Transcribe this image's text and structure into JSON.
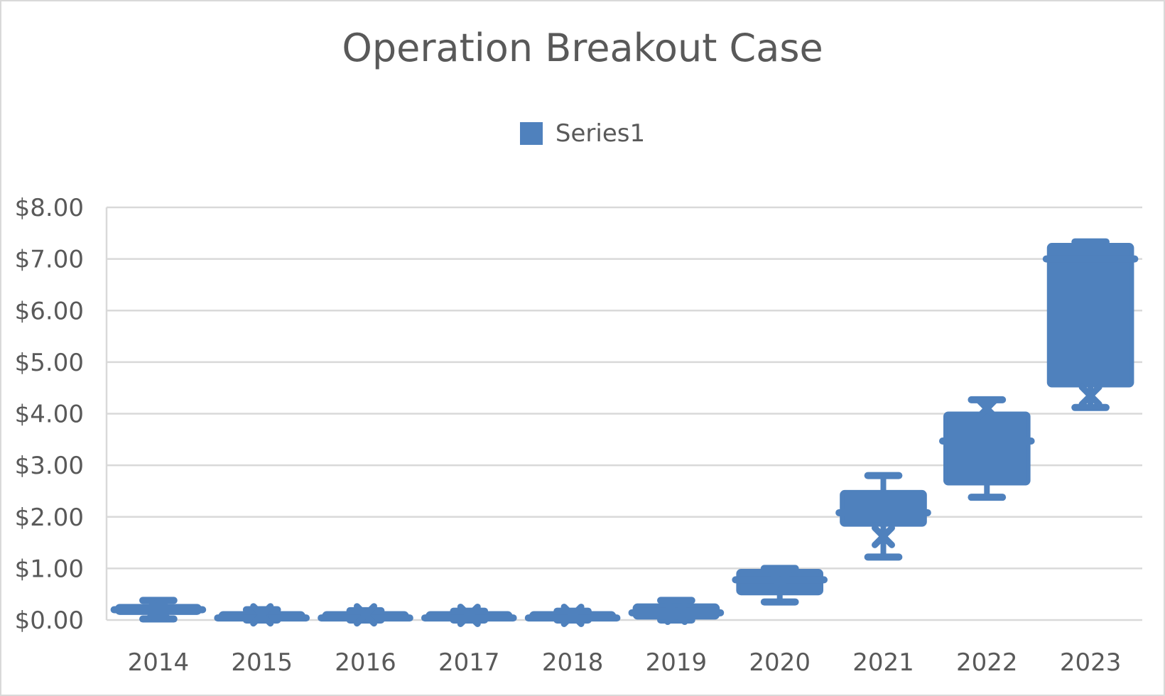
{
  "chart_data": {
    "type": "box",
    "title": "Operation Breakout Case",
    "legend": {
      "entries": [
        "Series1"
      ],
      "position": "top"
    },
    "categories": [
      "2014",
      "2015",
      "2016",
      "2017",
      "2018",
      "2019",
      "2020",
      "2021",
      "2022",
      "2023"
    ],
    "y_ticks": [
      "$0.00",
      "$1.00",
      "$2.00",
      "$3.00",
      "$4.00",
      "$5.00",
      "$6.00",
      "$7.00",
      "$8.00"
    ],
    "ylim": [
      0,
      8
    ],
    "grid": true,
    "series": [
      {
        "name": "Series1",
        "color": "#4f81bd",
        "boxes": [
          {
            "category": "2014",
            "min": 0.02,
            "q1": 0.14,
            "median": 0.2,
            "q3": 0.27,
            "max": 0.38,
            "mean": 0.22
          },
          {
            "category": "2015",
            "min": 0.0,
            "q1": 0.02,
            "median": 0.04,
            "q3": 0.05,
            "max": 0.2,
            "mean": 0.1
          },
          {
            "category": "2016",
            "min": 0.0,
            "q1": 0.02,
            "median": 0.04,
            "q3": 0.05,
            "max": 0.18,
            "mean": 0.1
          },
          {
            "category": "2017",
            "min": 0.0,
            "q1": 0.02,
            "median": 0.04,
            "q3": 0.05,
            "max": 0.17,
            "mean": 0.09
          },
          {
            "category": "2018",
            "min": 0.0,
            "q1": 0.02,
            "median": 0.04,
            "q3": 0.05,
            "max": 0.17,
            "mean": 0.09
          },
          {
            "category": "2019",
            "min": 0.0,
            "q1": 0.05,
            "median": 0.14,
            "q3": 0.28,
            "max": 0.38,
            "mean": 0.13
          },
          {
            "category": "2020",
            "min": 0.35,
            "q1": 0.52,
            "median": 0.78,
            "q3": 0.95,
            "max": 1.0,
            "mean": 0.75
          },
          {
            "category": "2021",
            "min": 1.22,
            "q1": 1.85,
            "median": 2.08,
            "q3": 2.48,
            "max": 2.8,
            "mean": 1.62
          },
          {
            "category": "2022",
            "min": 2.38,
            "q1": 2.65,
            "median": 3.47,
            "q3": 4.0,
            "max": 4.27,
            "mean": 4.1
          },
          {
            "category": "2023",
            "min": 4.12,
            "q1": 4.55,
            "median": 7.0,
            "q3": 7.27,
            "max": 7.33,
            "mean": 4.35
          }
        ]
      }
    ]
  }
}
